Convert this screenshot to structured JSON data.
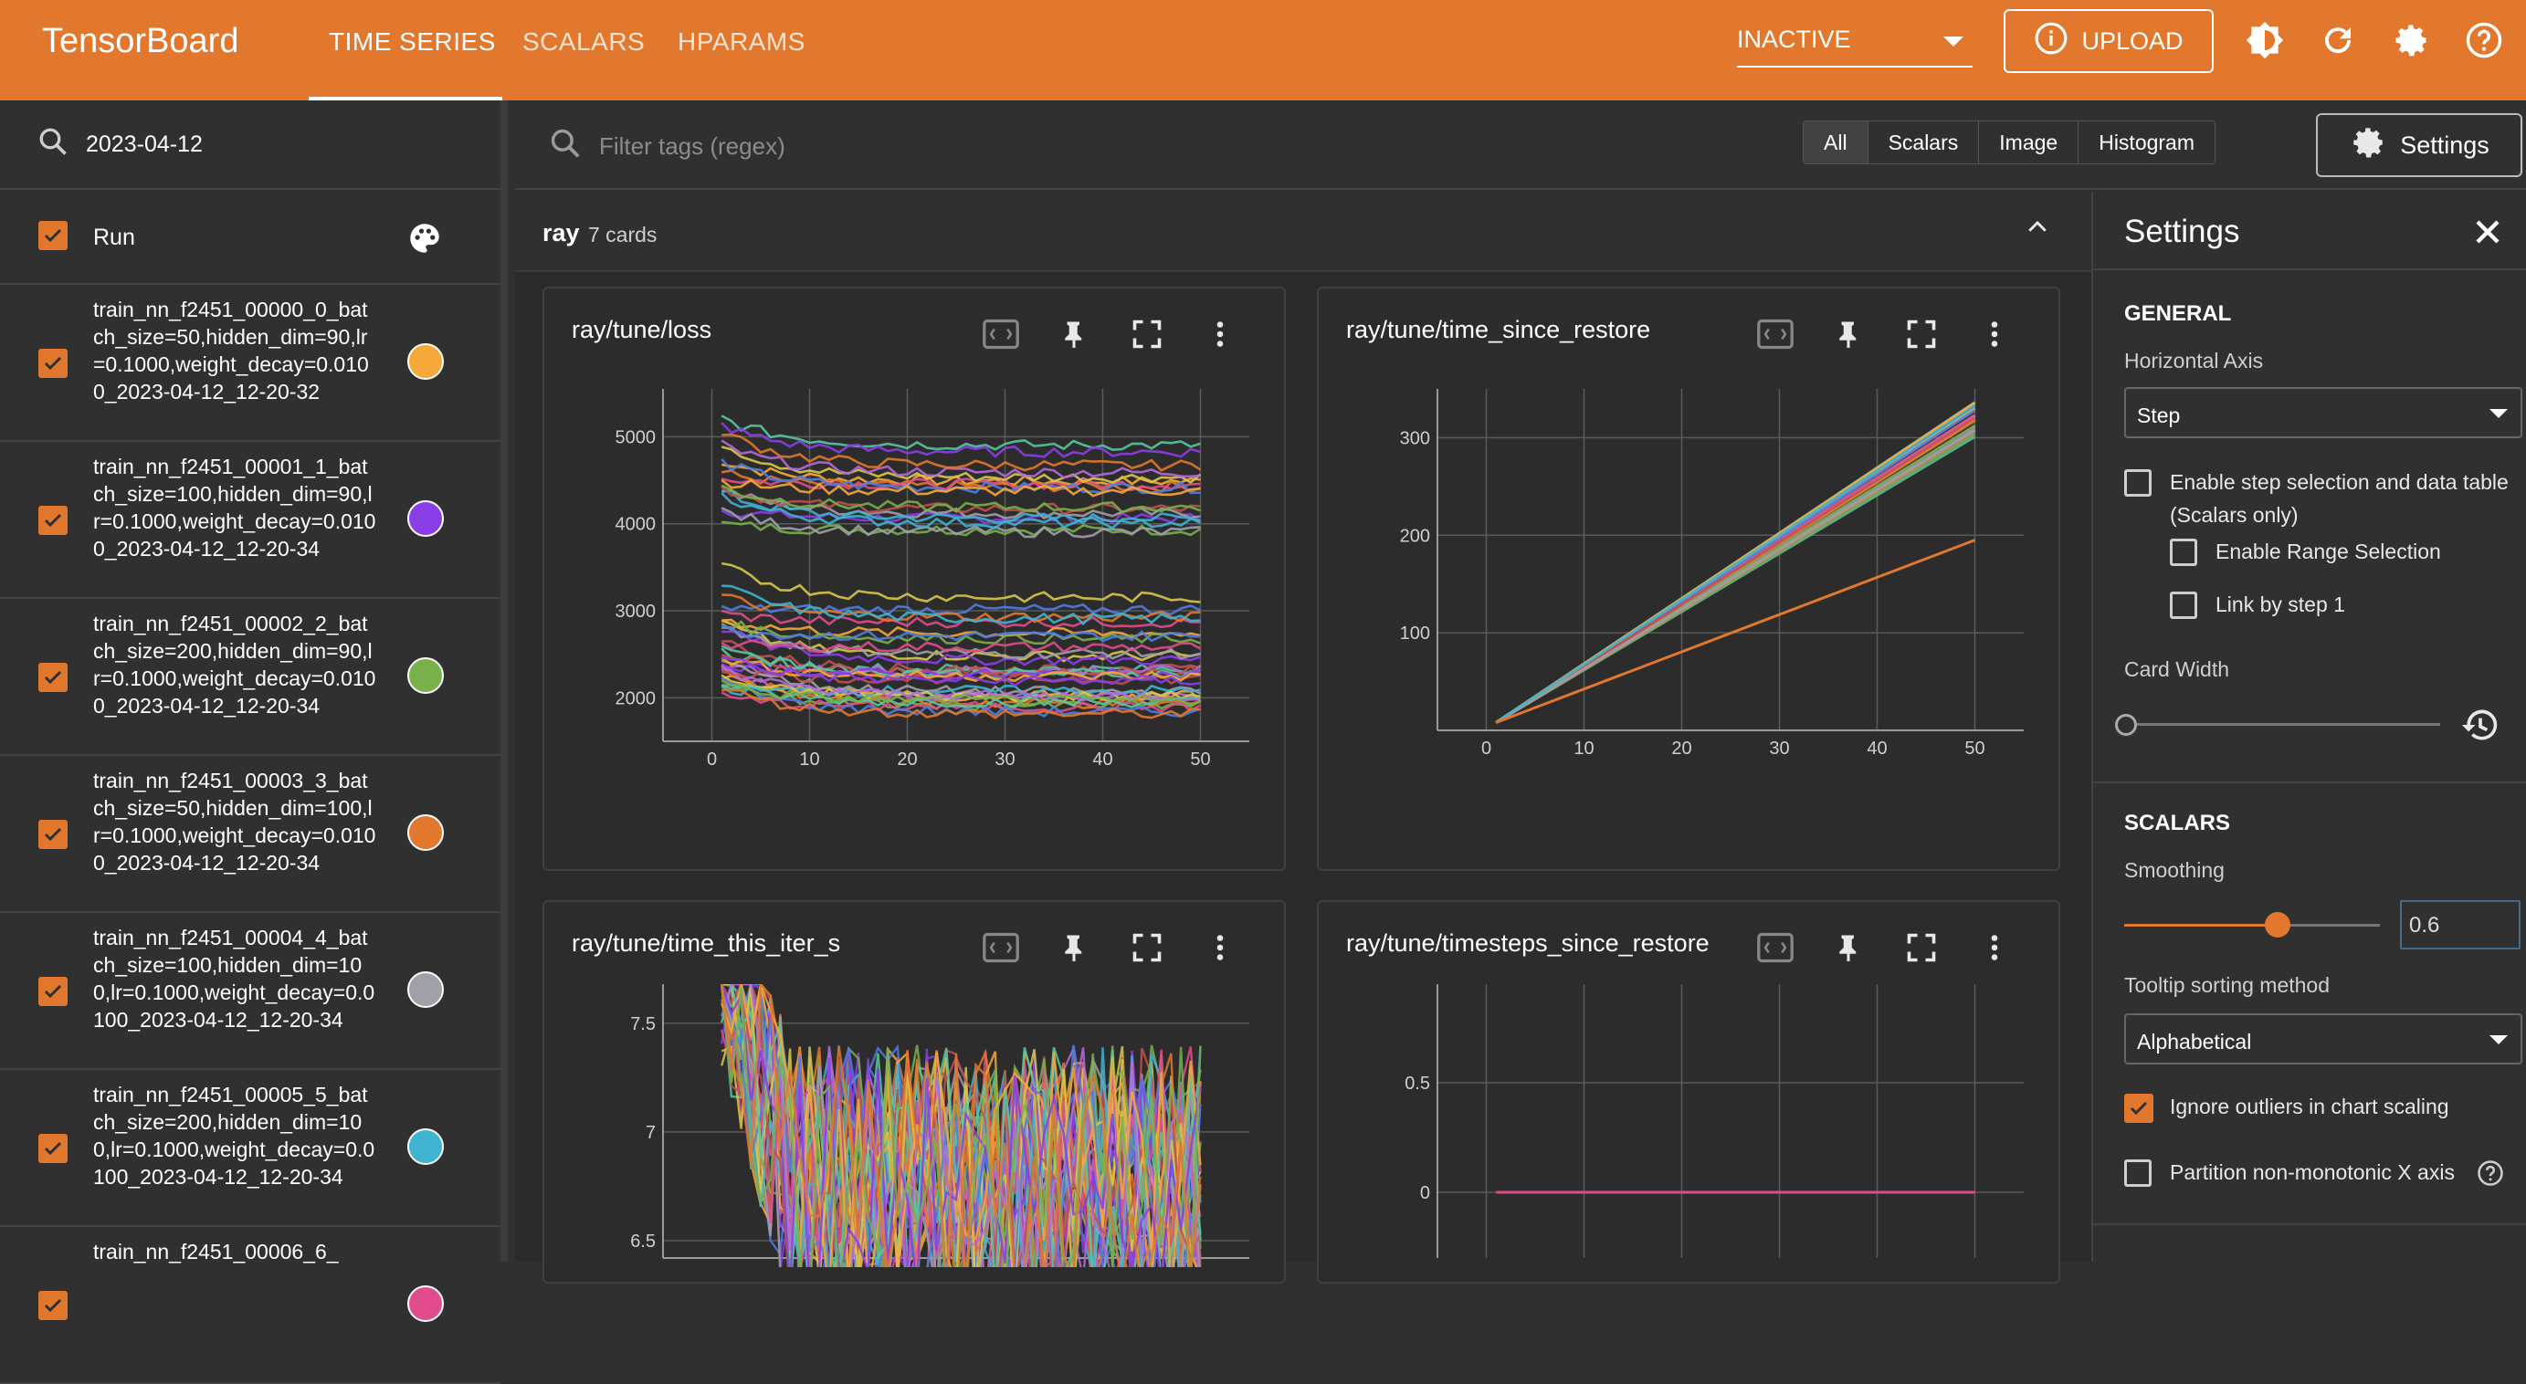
{
  "app": {
    "title": "TensorBoard"
  },
  "tabs": [
    {
      "label": "TIME SERIES"
    },
    {
      "label": "SCALARS"
    },
    {
      "label": "HPARAMS"
    }
  ],
  "toolbar": {
    "status": "INACTIVE",
    "upload_label": "UPLOAD"
  },
  "sidebar": {
    "search_value": "2023-04-12",
    "header_label": "Run",
    "runs": [
      {
        "name": "train_nn_f2451_00000_0_batch_size=50,hidden_dim=90,lr=0.1000,weight_decay=0.0100_2023-04-12_12-20-32",
        "color": "#f5a93a"
      },
      {
        "name": "train_nn_f2451_00001_1_batch_size=100,hidden_dim=90,lr=0.1000,weight_decay=0.0100_2023-04-12_12-20-34",
        "color": "#8a3ee6"
      },
      {
        "name": "train_nn_f2451_00002_2_batch_size=200,hidden_dim=90,lr=0.1000,weight_decay=0.0100_2023-04-12_12-20-34",
        "color": "#78b04a"
      },
      {
        "name": "train_nn_f2451_00003_3_batch_size=50,hidden_dim=100,lr=0.1000,weight_decay=0.0100_2023-04-12_12-20-34",
        "color": "#e2782e"
      },
      {
        "name": "train_nn_f2451_00004_4_batch_size=100,hidden_dim=100,lr=0.1000,weight_decay=0.0100_2023-04-12_12-20-34",
        "color": "#a0a0a8"
      },
      {
        "name": "train_nn_f2451_00005_5_batch_size=200,hidden_dim=100,lr=0.1000,weight_decay=0.0100_2023-04-12_12-20-34",
        "color": "#3fb3cf"
      },
      {
        "name": "train_nn_f2451_00006_6_",
        "color": "#e04c8c"
      }
    ]
  },
  "filter": {
    "placeholder": "Filter tags (regex)",
    "types": [
      "All",
      "Scalars",
      "Image",
      "Histogram"
    ],
    "settings_label": "Settings"
  },
  "group": {
    "name": "ray",
    "count": "7 cards"
  },
  "cards": [
    {
      "title": "ray/tune/loss"
    },
    {
      "title": "ray/tune/time_since_restore"
    },
    {
      "title": "ray/tune/time_this_iter_s"
    },
    {
      "title": "ray/tune/timesteps_since_restore"
    }
  ],
  "settings_panel": {
    "title": "Settings",
    "general": "GENERAL",
    "horizontal_axis_label": "Horizontal Axis",
    "horizontal_axis_value": "Step",
    "step_selection_label": "Enable step selection and data table",
    "step_selection_sub": "(Scalars only)",
    "range_selection_label": "Enable Range Selection",
    "link_by_step_label": "Link by step 1",
    "card_width_label": "Card Width",
    "scalars": "SCALARS",
    "smoothing_label": "Smoothing",
    "smoothing_value": "0.6",
    "smoothing_fraction": 0.6,
    "tooltip_label": "Tooltip sorting method",
    "tooltip_value": "Alphabetical",
    "ignore_outliers_label": "Ignore outliers in chart scaling",
    "partition_label": "Partition non-monotonic X axis"
  },
  "chart_data": [
    {
      "type": "line",
      "title": "ray/tune/loss",
      "x_ticks": [
        "0",
        "10",
        "20",
        "30",
        "40",
        "50"
      ],
      "y_ticks": [
        "2000",
        "3000",
        "4000",
        "5000"
      ],
      "xlim": [
        0,
        50
      ],
      "ylim": [
        1500,
        5500
      ]
    },
    {
      "type": "line",
      "title": "ray/tune/time_since_restore",
      "x_ticks": [
        "0",
        "10",
        "20",
        "30",
        "40",
        "50"
      ],
      "y_ticks": [
        "100",
        "200",
        "300"
      ],
      "xlim": [
        0,
        50
      ],
      "ylim": [
        0,
        350
      ]
    },
    {
      "type": "line",
      "title": "ray/tune/time_this_iter_s",
      "y_ticks": [
        "6.5",
        "7",
        "7.5"
      ]
    },
    {
      "type": "line",
      "title": "ray/tune/timesteps_since_restore",
      "y_ticks": [
        "0",
        "0.5"
      ],
      "series": [
        {
          "values": [
            0,
            0
          ]
        }
      ]
    }
  ]
}
